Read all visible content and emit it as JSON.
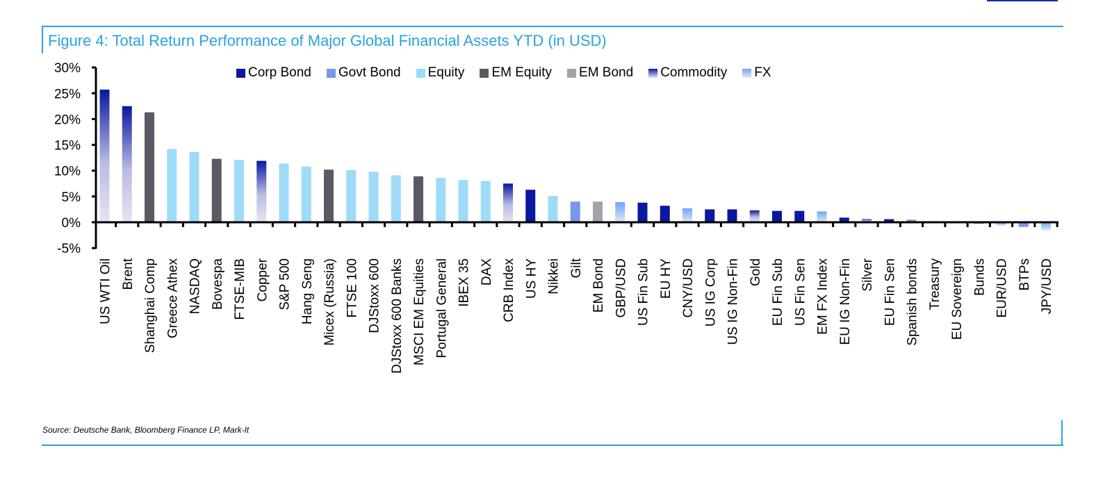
{
  "figure": {
    "title": "Figure 4: Total Return Performance of Major Global Financial Assets YTD (in USD)",
    "source": "Source: Deutsche Bank, Bloomberg Finance LP, Mark-It"
  },
  "legend": [
    {
      "label": "Corp Bond",
      "color": "#0a179e",
      "gradient": false
    },
    {
      "label": "Govt Bond",
      "color": "#7797e8",
      "gradient": false
    },
    {
      "label": "Equity",
      "color": "#9edbf8",
      "gradient": false
    },
    {
      "label": "EM Equity",
      "color": "#5a5a64",
      "gradient": false
    },
    {
      "label": "EM Bond",
      "color": "#a2a2ac",
      "gradient": false
    },
    {
      "label": "Commodity",
      "color": "#0a179e",
      "color2": "#e6e4f2",
      "gradient": true
    },
    {
      "label": "FX",
      "color": "#6fa5f5",
      "color2": "#ece6f6",
      "gradient": true
    }
  ],
  "chart_data": {
    "type": "bar",
    "title": "Figure 4: Total Return Performance of Major Global Financial Assets YTD (in USD)",
    "xlabel": "",
    "ylabel": "",
    "ylim": [
      -5,
      30
    ],
    "yticks": [
      -5,
      0,
      5,
      10,
      15,
      20,
      25,
      30
    ],
    "ytick_labels": [
      "-5%",
      "0%",
      "5%",
      "10%",
      "15%",
      "20%",
      "25%",
      "30%"
    ],
    "legend_position": "top",
    "grid": false,
    "categories": [
      "US WTI Oil",
      "Brent",
      "Shanghai Comp",
      "Greece Athex",
      "NASDAQ",
      "Bovespa",
      "FTSE-MIB",
      "Copper",
      "S&P 500",
      "Hang Seng",
      "Micex (Russia)",
      "FTSE 100",
      "DJStoxx 600",
      "DJStoxx 600 Banks",
      "MSCI EM Equities",
      "Portugal General",
      "IBEX 35",
      "DAX",
      "CRB Index",
      "US HY",
      "Nikkei",
      "Gilt",
      "EM Bond",
      "GBP/USD",
      "US Fin Sub",
      "EU HY",
      "CNY/USD",
      "US IG Corp",
      "US IG Non-Fin",
      "Gold",
      "EU Fin Sub",
      "US Fin Sen",
      "EM FX Index",
      "EU IG Non-Fin",
      "Silver",
      "EU Fin Sen",
      "Spanish bonds",
      "Treasury",
      "EU Sovereign",
      "Bunds",
      "EUR/USD",
      "BTPs",
      "JPY/USD"
    ],
    "values": [
      25.7,
      22.5,
      21.3,
      14.2,
      13.6,
      12.3,
      12.1,
      11.9,
      11.4,
      10.8,
      10.2,
      10.1,
      9.8,
      9.1,
      8.9,
      8.6,
      8.2,
      8.0,
      7.5,
      6.3,
      5.1,
      4.0,
      4.0,
      3.9,
      3.8,
      3.2,
      2.7,
      2.5,
      2.5,
      2.3,
      2.2,
      2.2,
      2.1,
      0.9,
      0.6,
      0.6,
      0.5,
      0.0,
      0.0,
      -0.3,
      -0.7,
      -0.9,
      -1.6
    ],
    "asset_class": [
      "Commodity",
      "Commodity",
      "EM Equity",
      "Equity",
      "Equity",
      "EM Equity",
      "Equity",
      "Commodity",
      "Equity",
      "Equity",
      "EM Equity",
      "Equity",
      "Equity",
      "Equity",
      "EM Equity",
      "Equity",
      "Equity",
      "Equity",
      "Commodity",
      "Corp Bond",
      "Equity",
      "Govt Bond",
      "EM Bond",
      "FX",
      "Corp Bond",
      "Corp Bond",
      "FX",
      "Corp Bond",
      "Corp Bond",
      "Commodity",
      "Corp Bond",
      "Corp Bond",
      "FX",
      "Corp Bond",
      "Commodity",
      "Corp Bond",
      "Govt Bond",
      "Govt Bond",
      "Govt Bond",
      "Govt Bond",
      "FX",
      "Govt Bond",
      "FX"
    ],
    "series": [
      {
        "name": "Total Return YTD (USD)",
        "unit": "%"
      }
    ]
  }
}
